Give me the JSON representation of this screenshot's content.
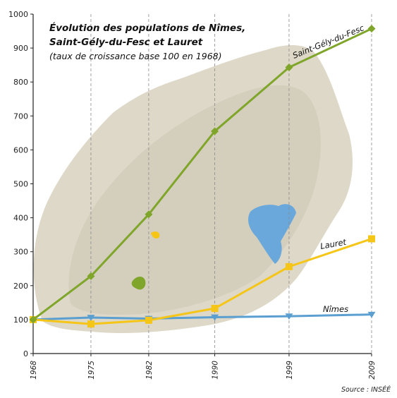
{
  "chart_data": {
    "type": "line",
    "title": "Évolution des populations de Nîmes,",
    "title_line2": "Saint-Gély-du-Fesc et Lauret",
    "subtitle": "(taux de croissance base 100 en 1968)",
    "source": "Source : INSÉÉ",
    "x": [
      1968,
      1975,
      1982,
      1990,
      1999,
      2009
    ],
    "x_tick_labels": [
      "1968",
      "1975",
      "1982",
      "1990",
      "1999",
      "2009"
    ],
    "y_ticks": [
      0,
      100,
      200,
      300,
      400,
      500,
      600,
      700,
      800,
      900,
      1000
    ],
    "ylim": [
      0,
      1000
    ],
    "series": [
      {
        "name": "Saint-Gély-du-Fesc",
        "color": "#7fa62a",
        "marker": "diamond",
        "values": [
          100,
          228,
          410,
          655,
          843,
          957
        ]
      },
      {
        "name": "Lauret",
        "color": "#f5c518",
        "marker": "square",
        "values": [
          100,
          87,
          98,
          133,
          256,
          338
        ]
      },
      {
        "name": "Nîmes",
        "color": "#5b9fd0",
        "marker": "triangle-down",
        "values": [
          100,
          106,
          103,
          107,
          110,
          115
        ]
      }
    ],
    "grid": "vertical dashed"
  }
}
